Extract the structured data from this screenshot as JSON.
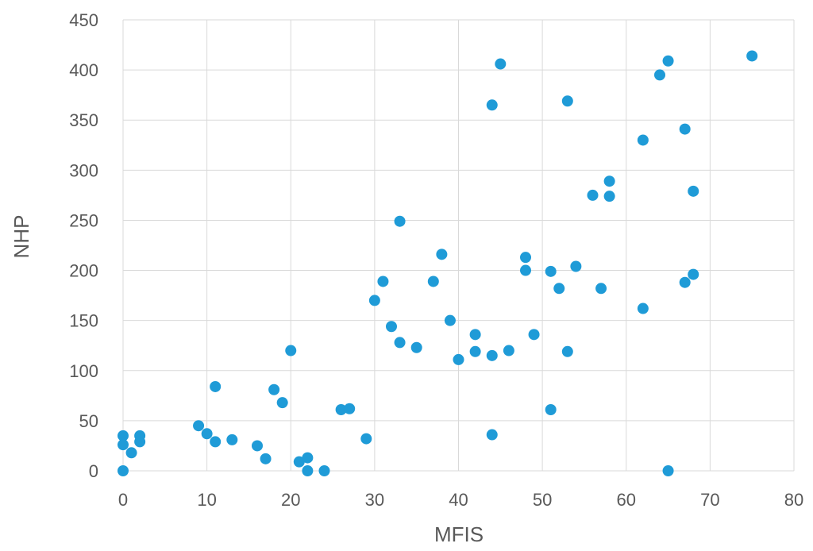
{
  "chart_data": {
    "type": "scatter",
    "xlabel": "MFIS",
    "ylabel": "NHP",
    "xlim": [
      0,
      80
    ],
    "ylim": [
      0,
      450
    ],
    "x_ticks": [
      0,
      10,
      20,
      30,
      40,
      50,
      60,
      70,
      80
    ],
    "y_ticks": [
      0,
      50,
      100,
      150,
      200,
      250,
      300,
      350,
      400,
      450
    ],
    "x_tick_labels": [
      "0",
      "10",
      "20",
      "30",
      "40",
      "50",
      "60",
      "70",
      "80"
    ],
    "y_tick_labels": [
      "0",
      "50",
      "100",
      "150",
      "200",
      "250",
      "300",
      "350",
      "400",
      "450"
    ],
    "grid": true,
    "marker_color": "#1f9bd7",
    "series": [
      {
        "points": [
          [
            0,
            35
          ],
          [
            0,
            26
          ],
          [
            0,
            0
          ],
          [
            1,
            18
          ],
          [
            2,
            35
          ],
          [
            2,
            29
          ],
          [
            9,
            45
          ],
          [
            10,
            37
          ],
          [
            11,
            29
          ],
          [
            11,
            84
          ],
          [
            13,
            31
          ],
          [
            16,
            25
          ],
          [
            17,
            12
          ],
          [
            18,
            81
          ],
          [
            19,
            68
          ],
          [
            20,
            120
          ],
          [
            21,
            9
          ],
          [
            22,
            13
          ],
          [
            22,
            0
          ],
          [
            24,
            0
          ],
          [
            26,
            61
          ],
          [
            27,
            62
          ],
          [
            29,
            32
          ],
          [
            30,
            170
          ],
          [
            31,
            189
          ],
          [
            32,
            144
          ],
          [
            33,
            128
          ],
          [
            33,
            249
          ],
          [
            35,
            123
          ],
          [
            37,
            189
          ],
          [
            38,
            216
          ],
          [
            39,
            150
          ],
          [
            40,
            111
          ],
          [
            42,
            136
          ],
          [
            42,
            119
          ],
          [
            44,
            115
          ],
          [
            44,
            365
          ],
          [
            44,
            36
          ],
          [
            45,
            406
          ],
          [
            46,
            120
          ],
          [
            48,
            213
          ],
          [
            48,
            200
          ],
          [
            49,
            136
          ],
          [
            51,
            199
          ],
          [
            51,
            61
          ],
          [
            52,
            182
          ],
          [
            53,
            369
          ],
          [
            53,
            119
          ],
          [
            54,
            204
          ],
          [
            56,
            275
          ],
          [
            57,
            182
          ],
          [
            58,
            289
          ],
          [
            58,
            274
          ],
          [
            62,
            330
          ],
          [
            62,
            162
          ],
          [
            64,
            395
          ],
          [
            65,
            409
          ],
          [
            65,
            0
          ],
          [
            67,
            341
          ],
          [
            67,
            188
          ],
          [
            68,
            279
          ],
          [
            68,
            196
          ],
          [
            75,
            414
          ]
        ]
      }
    ]
  }
}
